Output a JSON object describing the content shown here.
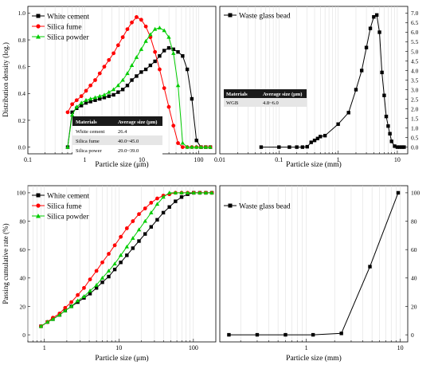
{
  "chart_data": [
    {
      "id": "p1",
      "type": "line",
      "title": "",
      "xlabel": "Particle size (μm)",
      "ylabel": "Distribution density (log.)",
      "xscale": "log",
      "xlim": [
        0.1,
        200
      ],
      "ylim": [
        -0.05,
        1.05
      ],
      "xticks": [
        0.1,
        1,
        10,
        100
      ],
      "xtick_labels": [
        "0.1",
        "1",
        "10",
        "100"
      ],
      "yticks": [
        0,
        0.2,
        0.4,
        0.6,
        0.8,
        1.0
      ],
      "ytick_labels": [
        "0.0",
        "0.2",
        "0.4",
        "0.6",
        "0.8",
        "1.0"
      ],
      "legend": "top-left",
      "series": [
        {
          "name": "White cement",
          "color": "#000000",
          "marker": "square",
          "x": [
            0.5,
            0.6,
            0.72,
            0.87,
            1.05,
            1.26,
            1.52,
            1.83,
            2.2,
            2.65,
            3.2,
            3.85,
            4.64,
            5.6,
            6.7,
            8.1,
            9.8,
            11.8,
            14.2,
            17.1,
            20.6,
            24.8,
            29.9,
            36,
            43.4,
            52.3,
            63,
            75.9,
            91.5,
            110,
            133,
            160
          ],
          "y": [
            0.0,
            0.26,
            0.29,
            0.31,
            0.33,
            0.34,
            0.35,
            0.36,
            0.37,
            0.38,
            0.39,
            0.41,
            0.43,
            0.46,
            0.5,
            0.53,
            0.56,
            0.58,
            0.61,
            0.64,
            0.68,
            0.72,
            0.74,
            0.73,
            0.71,
            0.68,
            0.58,
            0.36,
            0.05,
            0.0,
            0.0,
            0.0
          ]
        },
        {
          "name": "Silica fume",
          "color": "#ff0000",
          "marker": "circle",
          "x": [
            0.5,
            0.6,
            0.72,
            0.87,
            1.05,
            1.26,
            1.52,
            1.83,
            2.2,
            2.65,
            3.2,
            3.85,
            4.64,
            5.6,
            6.7,
            8.1,
            9.8,
            11.8,
            14.2,
            17.1,
            20.6,
            24.8,
            29.9,
            36,
            43.4,
            52.3,
            63,
            75.9,
            91.5,
            110,
            133,
            160
          ],
          "y": [
            0.26,
            0.32,
            0.35,
            0.38,
            0.42,
            0.46,
            0.5,
            0.55,
            0.6,
            0.65,
            0.7,
            0.76,
            0.82,
            0.88,
            0.93,
            0.97,
            0.95,
            0.9,
            0.82,
            0.71,
            0.58,
            0.44,
            0.3,
            0.16,
            0.03,
            0.0,
            0.0,
            0.0,
            0.0,
            0.0,
            0.0,
            0.0
          ]
        },
        {
          "name": "Silica powder",
          "color": "#00cc00",
          "marker": "triangle",
          "x": [
            0.5,
            0.6,
            0.72,
            0.87,
            1.05,
            1.26,
            1.52,
            1.83,
            2.2,
            2.65,
            3.2,
            3.85,
            4.64,
            5.6,
            6.7,
            8.1,
            9.8,
            11.8,
            14.2,
            17.1,
            20.6,
            24.8,
            29.9,
            36,
            43.4,
            52.3,
            63,
            75.9,
            91.5,
            110,
            133,
            160
          ],
          "y": [
            0.0,
            0.24,
            0.3,
            0.33,
            0.35,
            0.36,
            0.37,
            0.38,
            0.39,
            0.41,
            0.43,
            0.46,
            0.5,
            0.55,
            0.61,
            0.67,
            0.73,
            0.79,
            0.84,
            0.88,
            0.89,
            0.87,
            0.82,
            0.7,
            0.46,
            0.03,
            0.0,
            0.0,
            0.0,
            0.0,
            0.0,
            0.0
          ]
        }
      ],
      "table": {
        "headers": [
          "Materials",
          "Average size (μm)"
        ],
        "rows": [
          [
            "White cement",
            "26.4"
          ],
          [
            "Silica fume",
            "40.0~45.0"
          ],
          [
            "Silica power",
            "29.0~39.0"
          ]
        ]
      }
    },
    {
      "id": "p2",
      "type": "line",
      "title": "",
      "xlabel": "Particle size (mm)",
      "ylabel": "",
      "xscale": "log",
      "xlim": [
        0.01,
        15
      ],
      "ylim": [
        -0.35,
        7.35
      ],
      "xticks": [
        0.01,
        0.1,
        1,
        10
      ],
      "xtick_labels": [
        "0.01",
        "0.1",
        "1",
        "10"
      ],
      "yaxis_side": "right",
      "yticks": [
        0,
        0.5,
        1,
        1.5,
        2,
        2.5,
        3,
        3.5,
        4,
        4.5,
        5,
        5.5,
        6,
        6.5,
        7
      ],
      "ytick_labels": [
        "0.0",
        "0.5",
        "1.0",
        "1.5",
        "2.0",
        "2.5",
        "3.0",
        "3.5",
        "4.0",
        "4.5",
        "5.0",
        "5.5",
        "6.0",
        "6.5",
        "7.0"
      ],
      "legend": "top-left",
      "series": [
        {
          "name": "Waste glass bead",
          "color": "#000000",
          "marker": "square",
          "x": [
            0.05,
            0.1,
            0.15,
            0.2,
            0.25,
            0.3,
            0.35,
            0.4,
            0.45,
            0.5,
            0.6,
            1.0,
            1.5,
            2.0,
            2.5,
            3.0,
            3.5,
            4.0,
            4.5,
            5.0,
            5.5,
            6.0,
            6.5,
            7.0,
            7.5,
            8.0,
            9.0,
            10.0,
            11.0,
            12.0,
            13.0
          ],
          "y": [
            0.0,
            0.0,
            0.0,
            0.0,
            0.0,
            0.02,
            0.25,
            0.35,
            0.45,
            0.55,
            0.6,
            1.2,
            1.8,
            3.0,
            4.0,
            5.2,
            6.2,
            6.8,
            6.9,
            6.0,
            3.9,
            2.7,
            1.6,
            1.1,
            0.7,
            0.3,
            0.05,
            0.0,
            0.0,
            0.0,
            0.0
          ]
        }
      ],
      "table": {
        "headers": [
          "Materials",
          "Average size (μm)"
        ],
        "rows": [
          [
            "WGB",
            "4.8~6.0"
          ]
        ]
      }
    },
    {
      "id": "p3",
      "type": "line",
      "title": "",
      "xlabel": "Particle size (μm)",
      "ylabel": "Passing cumulative rate (%)",
      "xscale": "log",
      "xlim": [
        0.6,
        200
      ],
      "ylim": [
        -5,
        105
      ],
      "xticks": [
        1,
        10,
        100
      ],
      "xtick_labels": [
        "1",
        "10",
        "100"
      ],
      "yticks": [
        0,
        20,
        40,
        60,
        80,
        100
      ],
      "ytick_labels": [
        "0",
        "20",
        "40",
        "60",
        "80",
        "100"
      ],
      "legend": "top-left",
      "series": [
        {
          "name": "White cement",
          "color": "#000000",
          "marker": "square",
          "x": [
            0.9,
            1.1,
            1.3,
            1.6,
            1.9,
            2.3,
            2.8,
            3.4,
            4.1,
            5.0,
            6.0,
            7.3,
            8.8,
            10.6,
            12.8,
            15.4,
            18.6,
            22.5,
            27.1,
            32.7,
            39.5,
            47.6,
            57.5,
            69.4,
            83.7,
            101,
            122,
            147,
            177
          ],
          "y": [
            6,
            9,
            11,
            14,
            17,
            20,
            23,
            26,
            29,
            33,
            37,
            41,
            46,
            51,
            56,
            61,
            66,
            71,
            76,
            81,
            86,
            90,
            94,
            97,
            99,
            100,
            100,
            100,
            100
          ]
        },
        {
          "name": "Silica fume",
          "color": "#ff0000",
          "marker": "circle",
          "x": [
            0.9,
            1.1,
            1.3,
            1.6,
            1.9,
            2.3,
            2.8,
            3.4,
            4.1,
            5.0,
            6.0,
            7.3,
            8.8,
            10.6,
            12.8,
            15.4,
            18.6,
            22.5,
            27.1,
            32.7,
            39.5,
            47.6,
            57.5,
            69.4,
            83.7,
            101,
            122,
            147,
            177
          ],
          "y": [
            6,
            9,
            12,
            15,
            19,
            23,
            28,
            33,
            39,
            45,
            51,
            57,
            63,
            69,
            75,
            80,
            85,
            89,
            93,
            96,
            98,
            99,
            100,
            100,
            100,
            100,
            100,
            100,
            100
          ]
        },
        {
          "name": "Silica powder",
          "color": "#00cc00",
          "marker": "triangle",
          "x": [
            0.9,
            1.1,
            1.3,
            1.6,
            1.9,
            2.3,
            2.8,
            3.4,
            4.1,
            5.0,
            6.0,
            7.3,
            8.8,
            10.6,
            12.8,
            15.4,
            18.6,
            22.5,
            27.1,
            32.7,
            39.5,
            47.6,
            57.5,
            69.4,
            83.7,
            101,
            122,
            147,
            177
          ],
          "y": [
            6,
            9,
            11,
            14,
            17,
            20,
            24,
            27,
            31,
            35,
            40,
            45,
            50,
            56,
            62,
            68,
            74,
            80,
            86,
            92,
            97,
            100,
            100,
            100,
            100,
            100,
            100,
            100,
            100
          ]
        }
      ]
    },
    {
      "id": "p4",
      "type": "line",
      "title": "",
      "xlabel": "Particle size (mm)",
      "ylabel": "",
      "xscale": "log",
      "xlim": [
        0.12,
        12
      ],
      "ylim": [
        -5,
        105
      ],
      "xticks": [
        1,
        10
      ],
      "xtick_labels": [
        "1",
        "10"
      ],
      "yaxis_side": "right",
      "yticks": [
        0,
        20,
        40,
        60,
        80,
        100
      ],
      "ytick_labels": [
        "0",
        "20",
        "40",
        "60",
        "80",
        "100"
      ],
      "legend": "top-left",
      "series": [
        {
          "name": "Waste glass bead",
          "color": "#000000",
          "marker": "square",
          "x": [
            0.15,
            0.3,
            0.6,
            1.18,
            2.36,
            4.75,
            9.5
          ],
          "y": [
            0,
            0,
            0,
            0,
            1,
            48,
            100
          ]
        }
      ]
    }
  ]
}
